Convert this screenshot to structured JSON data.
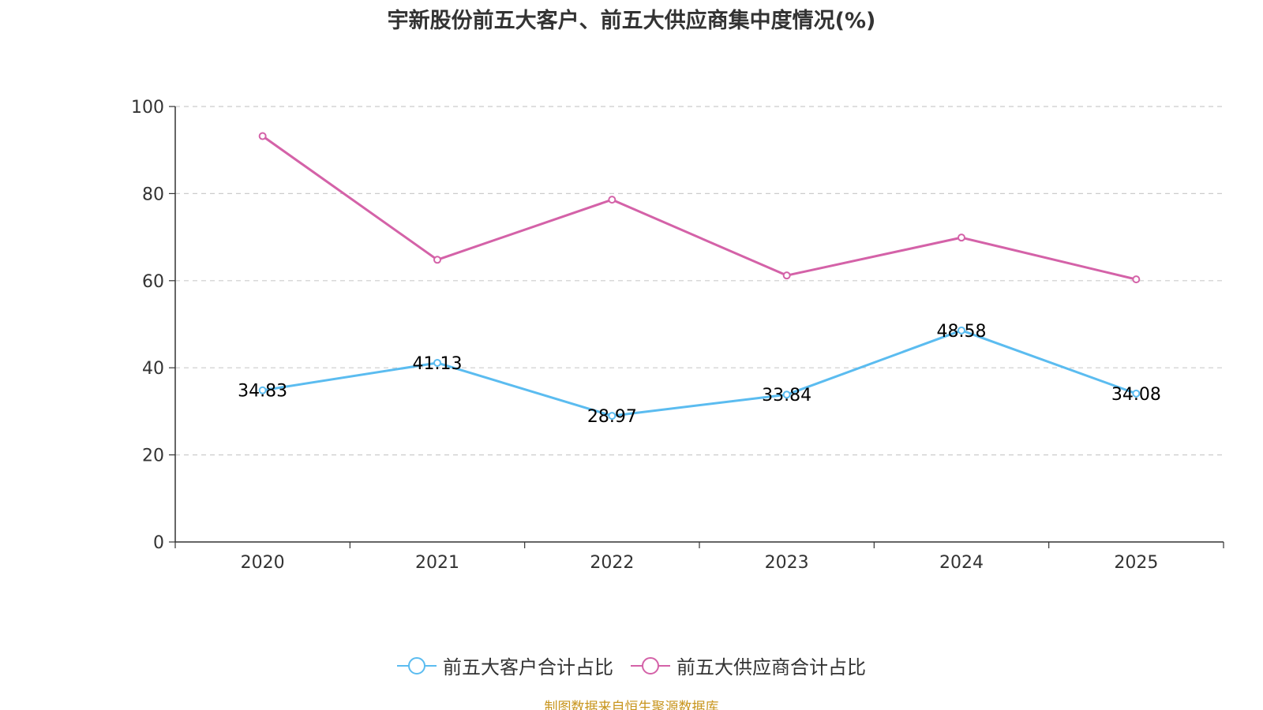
{
  "chart_data": {
    "type": "line",
    "title": "宇新股份前五大客户、前五大供应商集中度情况(%)",
    "categories": [
      "2020",
      "2021",
      "2022",
      "2023",
      "2024",
      "2025"
    ],
    "ylim": [
      0,
      100
    ],
    "yticks": [
      0,
      20,
      40,
      60,
      80,
      100
    ],
    "grid": true,
    "series": [
      {
        "name": "前五大客户合计占比",
        "color": "#5bbcf0",
        "values": [
          34.83,
          41.13,
          28.97,
          33.84,
          48.58,
          34.08
        ],
        "labels": [
          "34.83",
          "41.13",
          "28.97",
          "33.84",
          "48.58",
          "34.08"
        ],
        "show_labels": true
      },
      {
        "name": "前五大供应商合计占比",
        "color": "#d462a8",
        "values": [
          93.2,
          64.8,
          78.6,
          61.2,
          69.9,
          60.3
        ],
        "show_labels": false
      }
    ],
    "legend_position": "bottom"
  },
  "source": {
    "text": "制图数据来自恒生聚源数据库",
    "color": "#c8951e"
  }
}
